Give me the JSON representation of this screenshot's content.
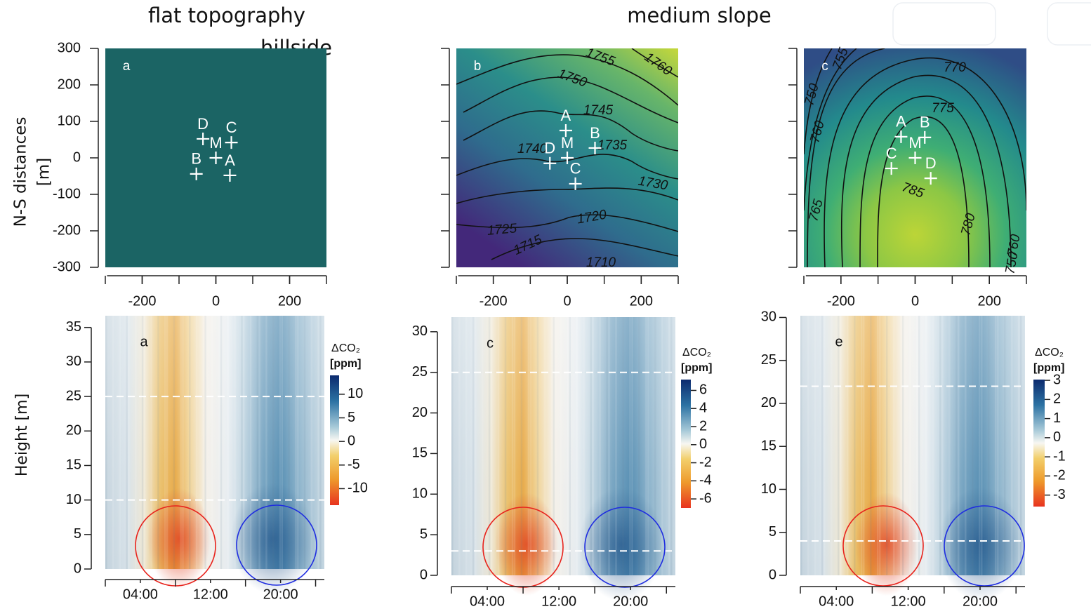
{
  "column_titles": [
    "flat topography",
    "hillside",
    "medium slope"
  ],
  "chart_data": [
    {
      "type": "scatter",
      "panel_label": "a",
      "ylabel": [
        "N-S distances",
        "[m]"
      ],
      "background": "flat",
      "xlim": [
        -300,
        300
      ],
      "ylim": [
        -300,
        300
      ],
      "xticks": [
        -200,
        0,
        200
      ],
      "yticks": [
        300,
        200,
        100,
        0,
        -100,
        -200,
        -300
      ],
      "show_ytick_labels": true,
      "points": {
        "labels": [
          "D",
          "M",
          "C",
          "B",
          "A"
        ],
        "x": [
          -35,
          0,
          42,
          -53,
          38
        ],
        "y": [
          52,
          0,
          42,
          -44,
          -48
        ]
      },
      "contour_labels": []
    },
    {
      "type": "scatter",
      "panel_label": "b",
      "background": "medium",
      "xlim": [
        -300,
        300
      ],
      "ylim": [
        -300,
        300
      ],
      "xticks": [
        -200,
        0,
        200
      ],
      "yticks": [
        300,
        200,
        100,
        0,
        -100,
        -200,
        -300
      ],
      "show_ytick_labels": false,
      "points": {
        "labels": [
          "A",
          "M",
          "B",
          "D",
          "C"
        ],
        "x": [
          -4,
          0,
          75,
          -47,
          22
        ],
        "y": [
          75,
          0,
          27,
          -15,
          -71
        ]
      },
      "contour_labels": [
        1755,
        1760,
        1750,
        1745,
        1740,
        1735,
        1730,
        1725,
        1720,
        1715,
        1710
      ]
    },
    {
      "type": "scatter",
      "panel_label": "c",
      "background": "hill",
      "xlim": [
        -300,
        300
      ],
      "ylim": [
        -300,
        300
      ],
      "xticks": [
        -200,
        0,
        200
      ],
      "yticks": [
        300,
        200,
        100,
        0,
        -100,
        -200,
        -300
      ],
      "show_ytick_labels": false,
      "points": {
        "labels": [
          "A",
          "B",
          "M",
          "C",
          "D"
        ],
        "x": [
          -38,
          26,
          0,
          -64,
          42
        ],
        "y": [
          58,
          56,
          0,
          -29,
          -56
        ]
      },
      "contour_labels": [
        755,
        770,
        775,
        750,
        760,
        765,
        785,
        780,
        760,
        750
      ]
    },
    {
      "type": "heatmap",
      "panel_label": "a",
      "ylabel": "Height [m]",
      "xlim": [
        0,
        25
      ],
      "ylim": [
        0,
        36.7
      ],
      "xticks": [
        {
          "value": 4,
          "label": "04:00"
        },
        {
          "value": 12,
          "label": "12:00"
        },
        {
          "value": 20,
          "label": "20:00"
        }
      ],
      "yticks": [
        0,
        5,
        10,
        15,
        20,
        25,
        30,
        35
      ],
      "reference_heights": [
        25,
        10
      ],
      "colorbar": {
        "title": "ΔCO₂",
        "unit": "[ppm]",
        "lim": [
          -13.5,
          14
        ],
        "ticks": [
          10,
          5,
          0,
          -5,
          -10
        ]
      }
    },
    {
      "type": "heatmap",
      "panel_label": "c",
      "xlim": [
        0,
        25
      ],
      "ylim": [
        0,
        31.8
      ],
      "xticks": [
        {
          "value": 4,
          "label": "04:00"
        },
        {
          "value": 12,
          "label": "12:00"
        },
        {
          "value": 20,
          "label": "20:00"
        }
      ],
      "yticks": [
        0,
        5,
        10,
        15,
        20,
        25,
        30
      ],
      "reference_heights": [
        25,
        3
      ],
      "colorbar": {
        "title": "ΔCO₂",
        "unit": "[ppm]",
        "lim": [
          -7,
          7.2
        ],
        "ticks": [
          6,
          4,
          2,
          0,
          -2,
          -4,
          -6
        ]
      }
    },
    {
      "type": "heatmap",
      "panel_label": "e",
      "xlim": [
        0,
        25
      ],
      "ylim": [
        0,
        30.2
      ],
      "xticks": [
        {
          "value": 4,
          "label": "04:00"
        },
        {
          "value": 12,
          "label": "12:00"
        },
        {
          "value": 20,
          "label": "20:00"
        }
      ],
      "yticks": [
        0,
        5,
        10,
        15,
        20,
        25,
        30
      ],
      "reference_heights": [
        22,
        4
      ],
      "colorbar": {
        "title": "ΔCO₂",
        "unit": "[ppm]",
        "lim": [
          -3.6,
          3.04
        ],
        "ticks": [
          3,
          2,
          1,
          0,
          -1,
          -2,
          -3
        ]
      }
    }
  ]
}
